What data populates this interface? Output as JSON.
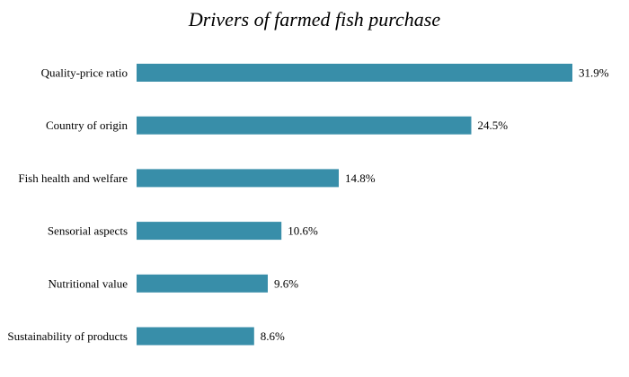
{
  "colors": {
    "bar": "#388EA9",
    "text": "#000000",
    "background": "#ffffff"
  },
  "chart_data": {
    "type": "bar",
    "orientation": "horizontal",
    "title": "Drivers of farmed fish purchase",
    "xlabel": "",
    "ylabel": "",
    "unit": "%",
    "xlim": [
      0,
      31.9
    ],
    "grid": false,
    "categories": [
      "Quality-price ratio",
      "Country of origin",
      "Fish health and welfare",
      "Sensorial aspects",
      "Nutritional value",
      "Sustainability of products"
    ],
    "values": [
      31.9,
      24.5,
      14.8,
      10.6,
      9.6,
      8.6
    ],
    "value_labels": [
      "31.9%",
      "24.5%",
      "14.8%",
      "10.6%",
      "9.6%",
      "8.6%"
    ]
  }
}
